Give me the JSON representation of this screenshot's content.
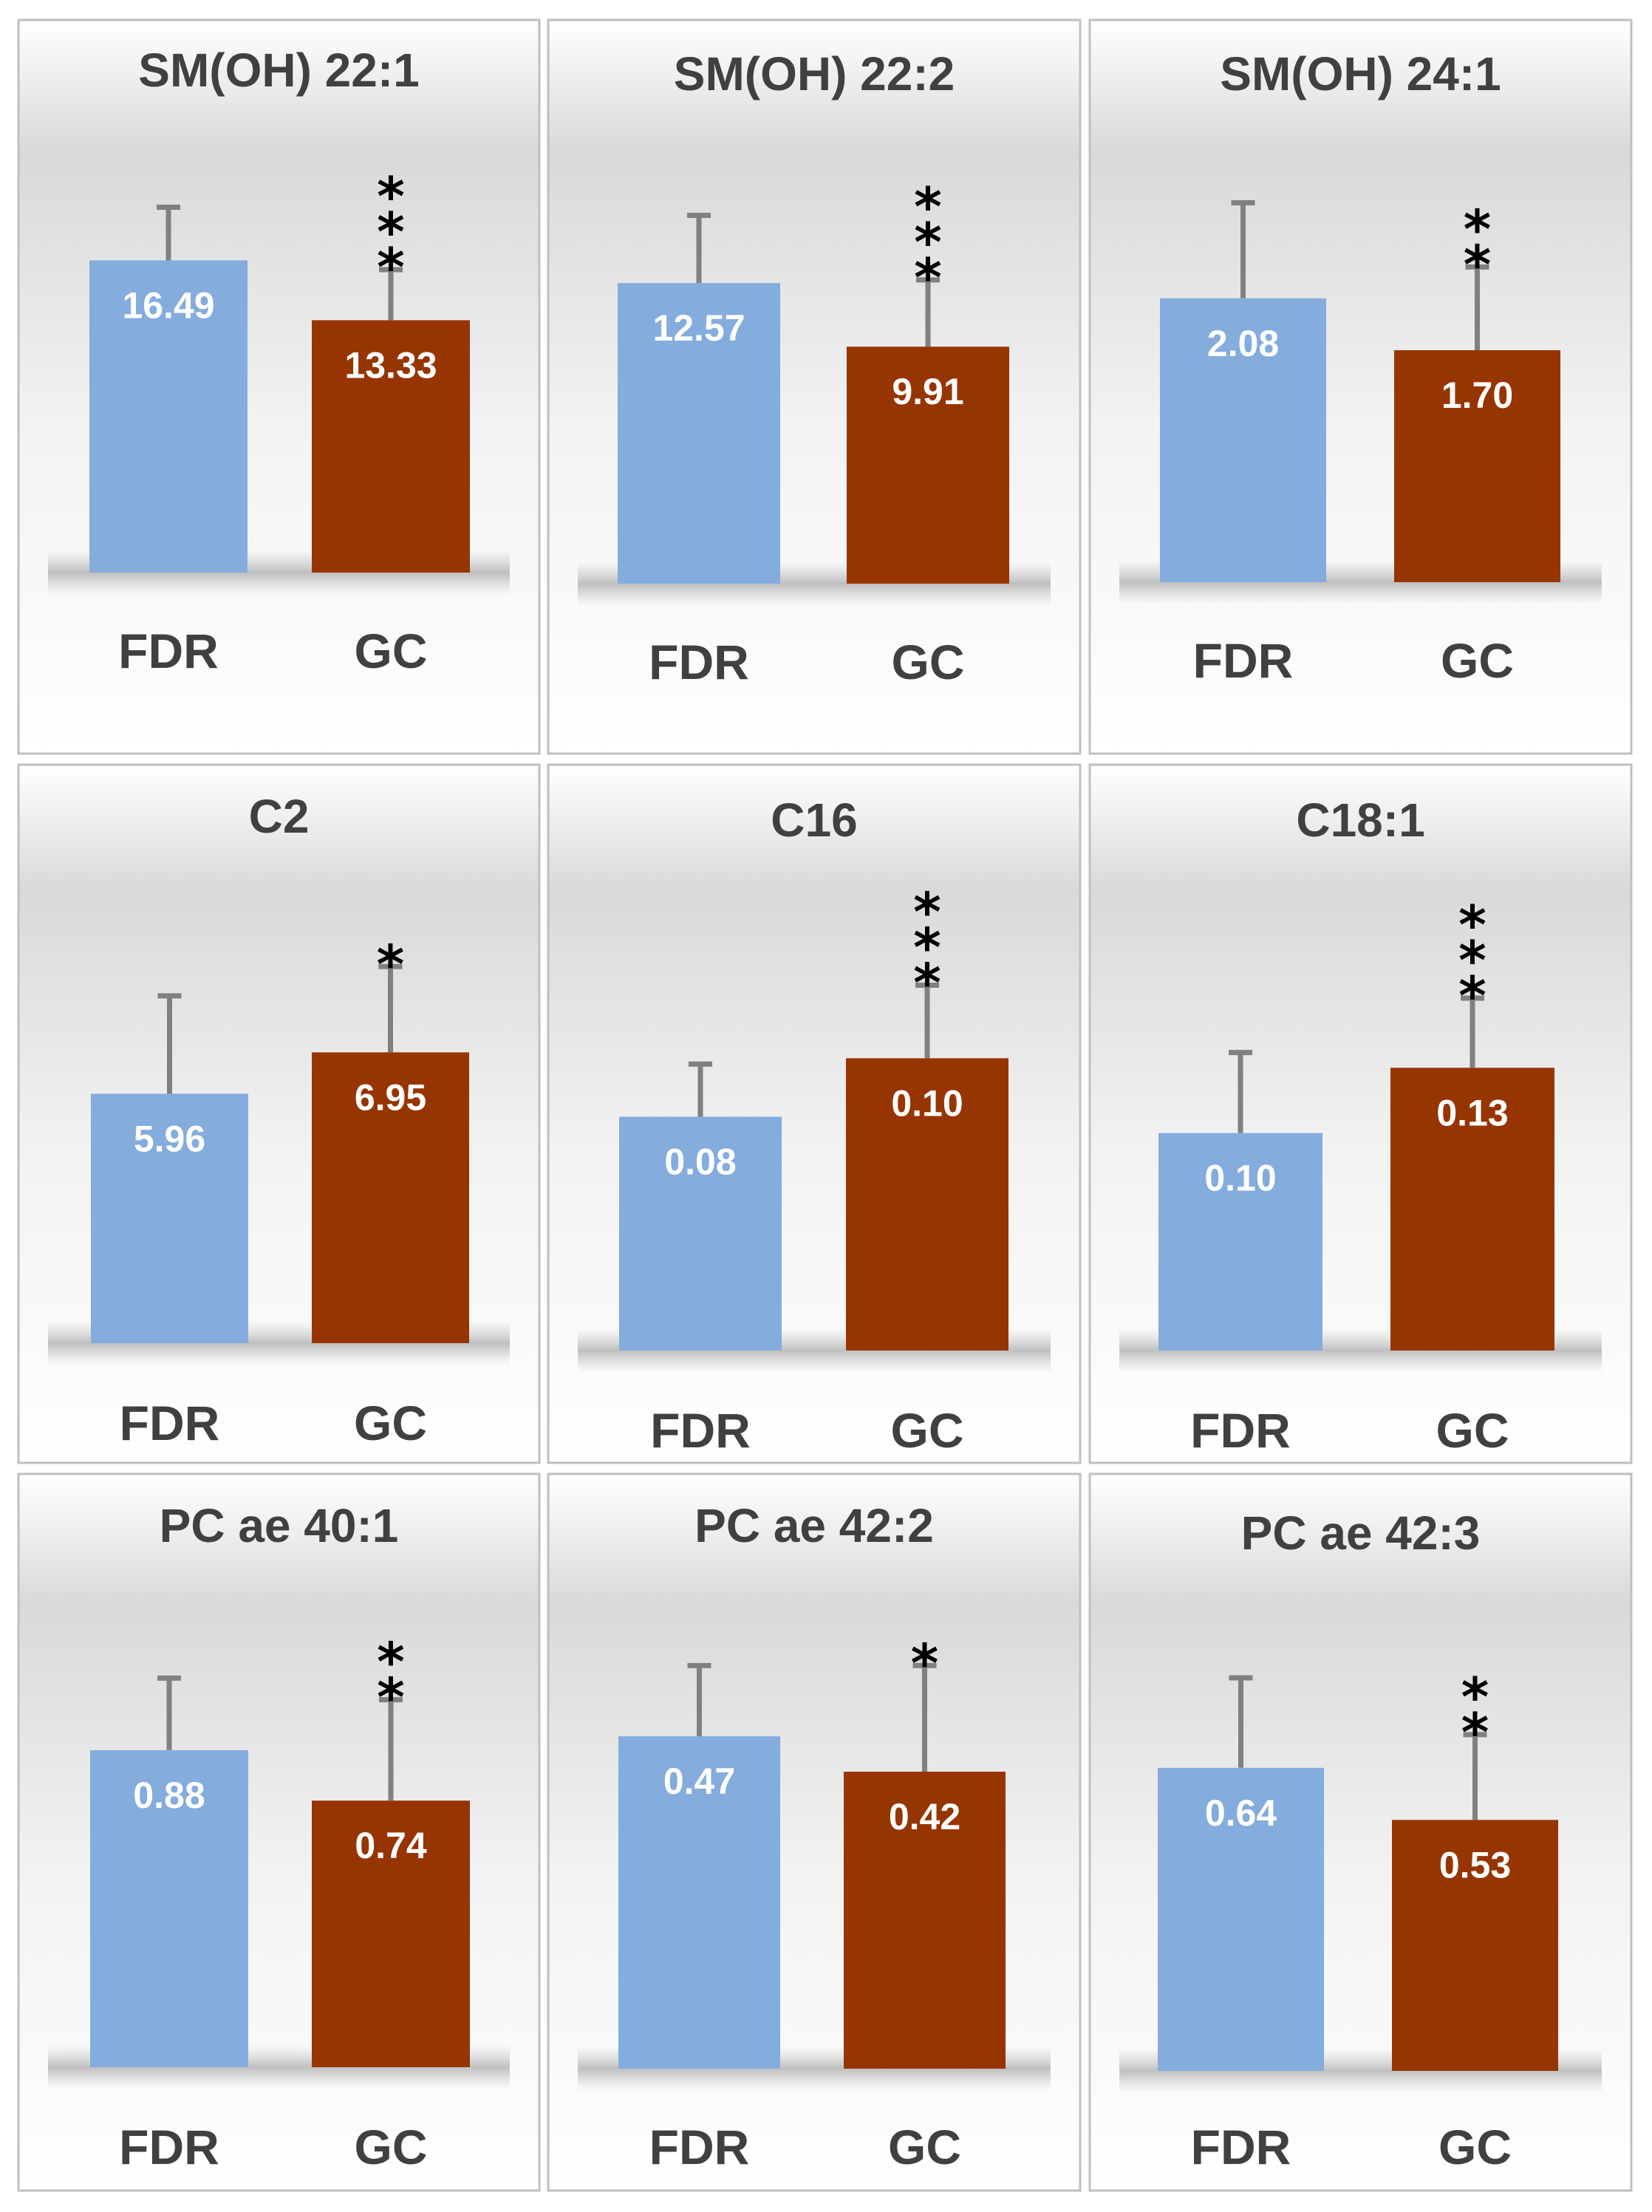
{
  "colors": {
    "FDR": "#84ACDD",
    "GC": "#973502",
    "errorbar": "#808080"
  },
  "chart_data": [
    {
      "type": "bar",
      "title": "SM(OH) 22:1",
      "categories": [
        "FDR",
        "GC"
      ],
      "values": [
        16.49,
        13.33
      ],
      "value_labels": [
        "16.49",
        "13.33"
      ],
      "error_upper": [
        19.3,
        16.0
      ],
      "significance": "***",
      "ylim": [
        0,
        24
      ]
    },
    {
      "type": "bar",
      "title": "SM(OH) 22:2",
      "categories": [
        "FDR",
        "GC"
      ],
      "values": [
        12.57,
        9.91
      ],
      "value_labels": [
        "12.57",
        "9.91"
      ],
      "error_upper": [
        15.4,
        12.7
      ],
      "significance": "***",
      "ylim": [
        0,
        19
      ]
    },
    {
      "type": "bar",
      "title": "SM(OH) 24:1",
      "categories": [
        "FDR",
        "GC"
      ],
      "values": [
        2.08,
        1.7
      ],
      "value_labels": [
        "2.08",
        "1.70"
      ],
      "error_upper": [
        2.78,
        2.31
      ],
      "significance": "**",
      "ylim": [
        0,
        3.4
      ]
    },
    {
      "type": "bar",
      "title": "C2",
      "categories": [
        "FDR",
        "GC"
      ],
      "values": [
        5.96,
        6.95
      ],
      "value_labels": [
        "5.96",
        "6.95"
      ],
      "error_upper": [
        8.3,
        9.0
      ],
      "significance": "*",
      "ylim": [
        0,
        11
      ]
    },
    {
      "type": "bar",
      "title": "C16",
      "categories": [
        "FDR",
        "GC"
      ],
      "values": [
        0.08,
        0.1
      ],
      "value_labels": [
        "0.08",
        "0.10"
      ],
      "error_upper": [
        0.098,
        0.125
      ],
      "significance": "***",
      "ylim": [
        0,
        0.16
      ]
    },
    {
      "type": "bar",
      "title": "C18:1",
      "categories": [
        "FDR",
        "GC"
      ],
      "values": [
        0.1,
        0.13
      ],
      "value_labels": [
        "0.10",
        "0.13"
      ],
      "error_upper": [
        0.137,
        0.162
      ],
      "significance": "***",
      "ylim": [
        0,
        0.215
      ]
    },
    {
      "type": "bar",
      "title": "PC ae 40:1",
      "categories": [
        "FDR",
        "GC"
      ],
      "values": [
        0.88,
        0.74
      ],
      "value_labels": [
        "0.88",
        "0.74"
      ],
      "error_upper": [
        1.08,
        1.02
      ],
      "significance": "**",
      "ylim": [
        0,
        1.37
      ]
    },
    {
      "type": "bar",
      "title": "PC ae 42:2",
      "categories": [
        "FDR",
        "GC"
      ],
      "values": [
        0.47,
        0.42
      ],
      "value_labels": [
        "0.47",
        "0.42"
      ],
      "error_upper": [
        0.57,
        0.57
      ],
      "significance": "*",
      "ylim": [
        0,
        0.7
      ]
    },
    {
      "type": "bar",
      "title": "PC ae 42:3",
      "categories": [
        "FDR",
        "GC"
      ],
      "values": [
        0.64,
        0.53
      ],
      "value_labels": [
        "0.64",
        "0.53"
      ],
      "error_upper": [
        0.83,
        0.71
      ],
      "significance": "**",
      "ylim": [
        0,
        1.05
      ]
    }
  ]
}
